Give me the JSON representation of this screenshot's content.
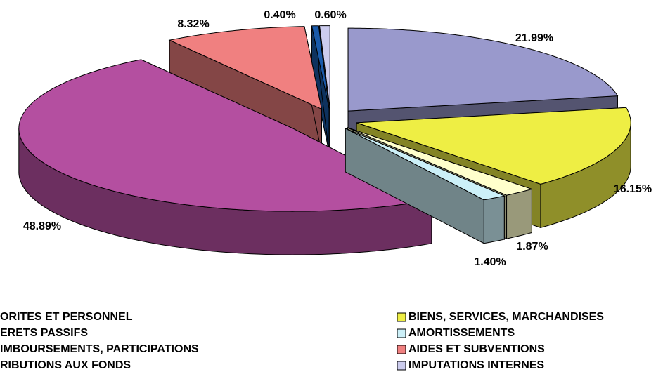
{
  "chart_data": {
    "type": "pie3d",
    "categories": [
      "ORITES ET PERSONNEL",
      "BIENS, SERVICES, MARCHANDISES",
      "ERETS PASSIFS",
      "AMORTISSEMENTS",
      "IMBOURSEMENTS, PARTICIPATIONS",
      "AIDES ET SUBVENTIONS",
      "RIBUTIONS AUX FONDS",
      "IMPUTATIONS INTERNES"
    ],
    "values": [
      21.99,
      16.15,
      1.87,
      1.4,
      48.89,
      8.32,
      0.4,
      0.6
    ],
    "value_labels": [
      "21.99%",
      "16.15%",
      "1.87%",
      "1.40%",
      "48.89%",
      "8.32%",
      "0.40%",
      "0.60%"
    ],
    "colors": [
      "#9999CC",
      "#EEEE44",
      "#FFFFCC",
      "#CCF0F8",
      "#B44FA0",
      "#F08080",
      "#1A5AAA",
      "#CCCCEE"
    ],
    "legend": "bottom"
  }
}
